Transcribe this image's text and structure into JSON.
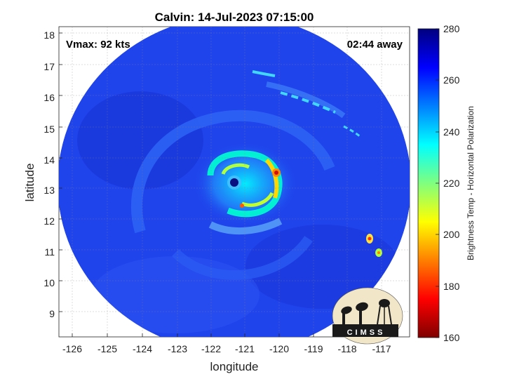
{
  "title": "Calvin: 14-Jul-2023 07:15:00",
  "annotations": {
    "vmax": "Vmax: 92 kts",
    "time_away": "02:44 away"
  },
  "axes": {
    "xlabel": "longitude",
    "ylabel": "latitude",
    "xlim": [
      -126.5,
      -116.5
    ],
    "ylim": [
      8.2,
      18.2
    ],
    "xticks": [
      "-126",
      "-125",
      "-124",
      "-123",
      "-122",
      "-121",
      "-120",
      "-119",
      "-118",
      "-117"
    ],
    "yticks": [
      "9",
      "10",
      "11",
      "12",
      "13",
      "14",
      "15",
      "16",
      "17",
      "18"
    ]
  },
  "colorbar": {
    "label": "Brightness Temp - Horizontal Polarization",
    "range": [
      160,
      280
    ],
    "ticks": [
      "280",
      "260",
      "240",
      "220",
      "200",
      "180",
      "160"
    ]
  },
  "logo": {
    "text": "CIMSS"
  },
  "storm": {
    "eye_lon": -121.3,
    "eye_lat": 13.15,
    "swath_center_lon": -121.3,
    "swath_center_lat": 13.15
  },
  "colors": {
    "background_blue": "#1f3fe8",
    "eye": "#0a1080",
    "core": "#ffd800",
    "hot": "#d01010"
  }
}
